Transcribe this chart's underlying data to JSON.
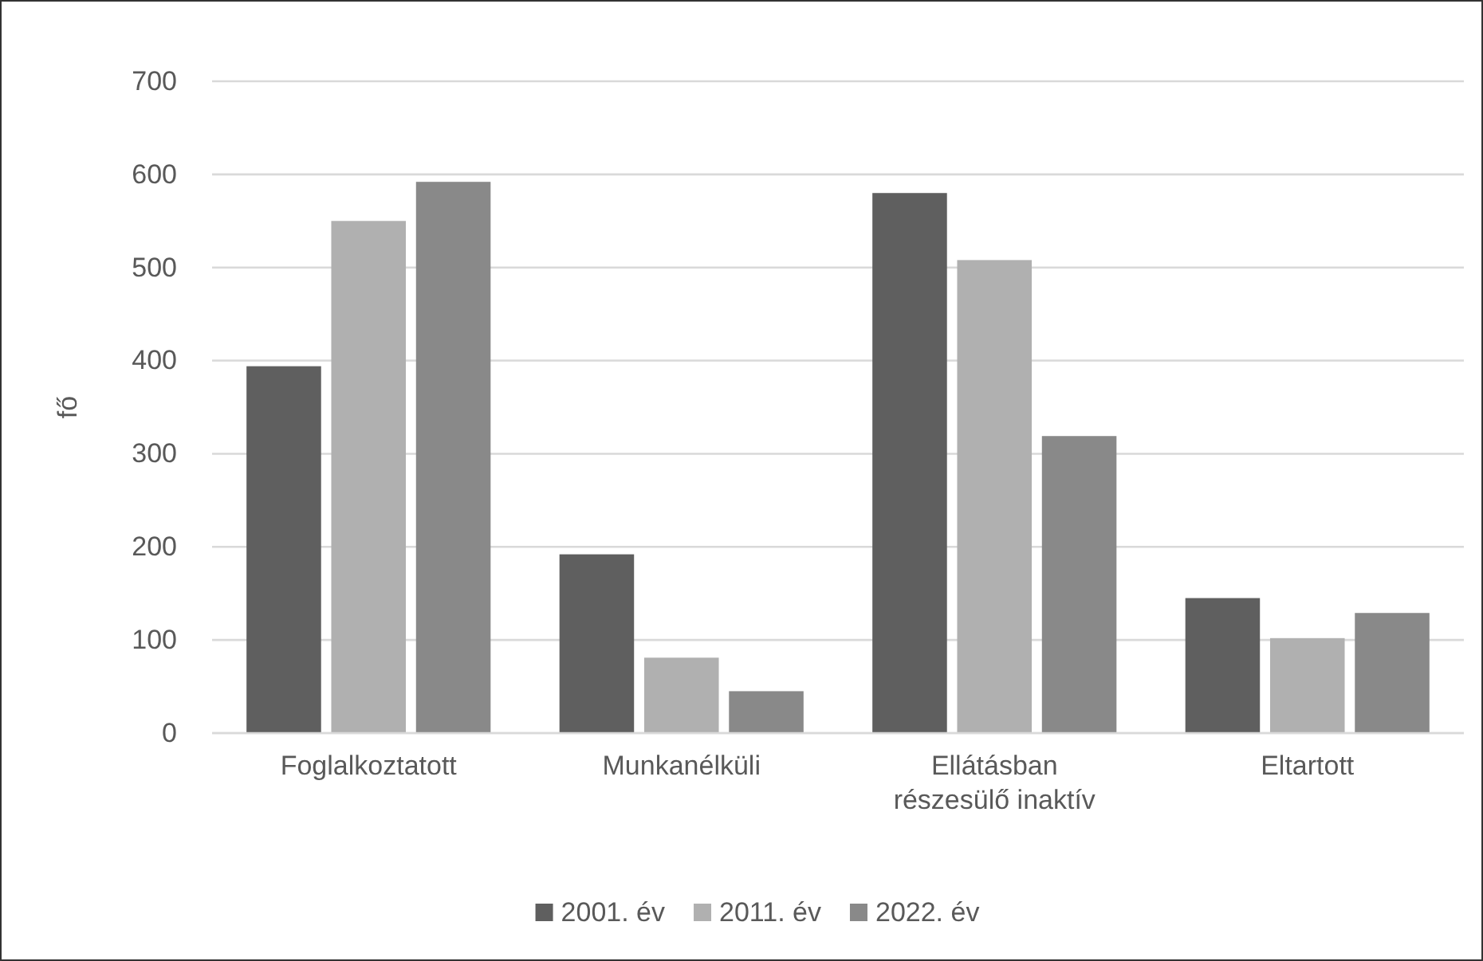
{
  "chart_data": {
    "type": "bar",
    "ylabel": "fő",
    "categories": [
      "Foglalkoztatott",
      "Munkanélküli",
      "Ellátásban részesülő inaktív",
      "Eltartott"
    ],
    "series": [
      {
        "name": "2001. év",
        "color": "#5f5f5f",
        "values": [
          394,
          192,
          580,
          145
        ]
      },
      {
        "name": "2011. év",
        "color": "#b0b0b0",
        "values": [
          550,
          81,
          508,
          102
        ]
      },
      {
        "name": "2022. év",
        "color": "#898989",
        "values": [
          592,
          45,
          319,
          129
        ]
      }
    ],
    "ylim": [
      0,
      700
    ],
    "yticks": [
      0,
      100,
      200,
      300,
      400,
      500,
      600,
      700
    ],
    "grid": "y",
    "legend": "bottom"
  }
}
